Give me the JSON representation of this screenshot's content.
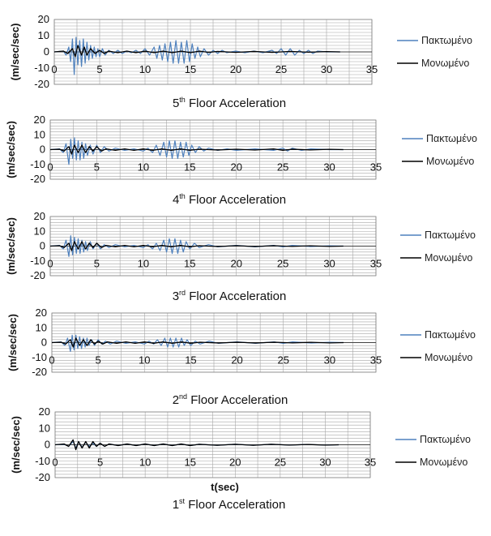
{
  "colors": {
    "fixed": "#4f81bd",
    "isolated": "#000000",
    "grid": "#a6a6a6",
    "axis": "#808080"
  },
  "x_axis_label": "t(sec)",
  "chart_data": [
    {
      "type": "line",
      "title": {
        "pre": "5",
        "sup": "th",
        "post": " Floor Acceleration"
      },
      "ylabel": "(m/sec/sec)",
      "xlim": [
        0,
        35
      ],
      "ylim": [
        -20,
        20
      ],
      "xticks": [
        0,
        5,
        10,
        15,
        20,
        25,
        30,
        35
      ],
      "yticks": [
        -20,
        -10,
        0,
        10,
        20
      ],
      "series": [
        {
          "name": "Πακτωμένο",
          "color": "#4f81bd",
          "x": [
            0,
            1,
            1.3,
            1.6,
            1.8,
            2.0,
            2.2,
            2.4,
            2.6,
            2.8,
            3.0,
            3.2,
            3.4,
            3.6,
            3.8,
            4.0,
            4.2,
            4.4,
            4.6,
            4.8,
            5.0,
            5.3,
            5.6,
            6.0,
            6.5,
            7.0,
            7.5,
            8.0,
            8.5,
            9.0,
            9.5,
            10.0,
            10.5,
            11.0,
            11.3,
            11.6,
            11.9,
            12.2,
            12.5,
            12.8,
            13.1,
            13.4,
            13.7,
            14.0,
            14.3,
            14.6,
            14.9,
            15.2,
            15.5,
            15.8,
            16.1,
            16.5,
            17,
            17.5,
            18,
            18.5,
            19,
            20,
            21,
            22,
            23,
            24,
            24.5,
            25,
            25.5,
            26,
            26.5,
            27,
            27.5,
            28,
            28.5,
            29,
            30,
            31,
            31.5
          ],
          "y": [
            0,
            0.5,
            -2,
            3,
            -6,
            8,
            -14,
            9,
            -8,
            7,
            -9,
            8,
            -7,
            6,
            -5,
            4,
            -4,
            3,
            -3,
            2,
            -3,
            2,
            -2,
            1,
            -1,
            1,
            -1,
            0.5,
            -0.5,
            1,
            -1,
            2,
            -2,
            3,
            -4,
            4,
            -5,
            5,
            -6,
            6,
            -7,
            7,
            -7,
            6,
            -7,
            7,
            -6,
            5,
            -4,
            3,
            -3,
            2,
            -2,
            1,
            -1,
            1,
            -0.5,
            0.5,
            -0.5,
            0.5,
            -0.5,
            1,
            -1,
            2,
            -2,
            2,
            -2,
            1,
            -1,
            1,
            -1,
            0.5,
            0,
            0,
            0
          ]
        },
        {
          "name": "Μονωμένο",
          "color": "#000000",
          "x": [
            0,
            1,
            1.5,
            2.0,
            2.3,
            2.6,
            3.0,
            3.3,
            3.6,
            4.0,
            4.5,
            5.0,
            5.5,
            6,
            7,
            8,
            9,
            10,
            11,
            12,
            13,
            14,
            15,
            16,
            17,
            18,
            20,
            22,
            24,
            26,
            28,
            30,
            31.5
          ],
          "y": [
            0,
            0.5,
            -1,
            2,
            -3,
            4,
            -2,
            3,
            -2,
            2,
            -1,
            1,
            -1,
            0.5,
            -0.5,
            0.5,
            -0.5,
            0.5,
            -0.5,
            0.5,
            -0.5,
            0.5,
            -0.5,
            0.5,
            -0.3,
            0.3,
            -0.3,
            0.3,
            -0.3,
            0.3,
            -0.2,
            0.2,
            0
          ]
        }
      ]
    },
    {
      "type": "line",
      "title": {
        "pre": "4",
        "sup": "th",
        "post": " Floor Acceleration"
      },
      "ylabel": "(m/sec/sec)",
      "xlim": [
        0,
        35
      ],
      "ylim": [
        -20,
        20
      ],
      "xticks": [
        0,
        5,
        10,
        15,
        20,
        25,
        30,
        35
      ],
      "yticks": [
        -20,
        -10,
        0,
        10,
        20
      ],
      "series": [
        {
          "name": "Πακτωμένο",
          "color": "#4f81bd",
          "x": [
            0,
            1,
            1.4,
            1.7,
            2.0,
            2.2,
            2.4,
            2.6,
            2.8,
            3.0,
            3.2,
            3.4,
            3.6,
            3.8,
            4.0,
            4.3,
            4.6,
            5.0,
            5.4,
            5.8,
            6.3,
            7,
            8,
            9,
            10,
            10.5,
            11,
            11.4,
            11.8,
            12.2,
            12.5,
            12.8,
            13.1,
            13.4,
            13.7,
            14.0,
            14.3,
            14.6,
            14.9,
            15.2,
            15.6,
            16,
            16.5,
            17,
            18,
            19,
            20,
            22,
            24,
            25,
            25.5,
            26,
            27,
            28,
            30,
            31.5
          ],
          "y": [
            0,
            0.5,
            -2,
            4,
            -10,
            7,
            -6,
            8,
            -7,
            6,
            -7,
            5,
            -6,
            4,
            -4,
            3,
            -3,
            3,
            -2,
            2,
            -1,
            1,
            -0.5,
            0.5,
            -1,
            1,
            -2,
            3,
            -4,
            5,
            -5,
            6,
            -6,
            6,
            -6,
            5,
            -5,
            5,
            -4,
            3,
            -2,
            2,
            -1,
            1,
            -0.5,
            0.5,
            -0.5,
            0.5,
            -0.5,
            1,
            -1,
            1,
            -0.5,
            0.5,
            0,
            0
          ]
        },
        {
          "name": "Μονωμένο",
          "color": "#000000",
          "x": [
            0,
            1,
            1.5,
            2.0,
            2.3,
            2.6,
            3.0,
            3.4,
            3.8,
            4.2,
            4.6,
            5.0,
            5.5,
            6,
            7,
            8,
            9,
            10,
            11,
            12,
            13,
            14,
            15,
            16,
            18,
            20,
            22,
            24,
            25,
            26,
            28,
            30,
            31.5
          ],
          "y": [
            0,
            0.3,
            -1,
            2,
            -3,
            3,
            -2,
            3,
            -2,
            2,
            -1,
            2,
            -1,
            0.5,
            -0.5,
            0.5,
            -0.5,
            0.5,
            -0.5,
            0.5,
            -0.5,
            0.5,
            -0.5,
            0.3,
            -0.3,
            0.3,
            -0.3,
            0.5,
            -0.5,
            0.3,
            -0.2,
            0.2,
            0
          ]
        }
      ]
    },
    {
      "type": "line",
      "title": {
        "pre": "3",
        "sup": "rd",
        "post": " Floor Acceleration"
      },
      "ylabel": "(m/sec/sec)",
      "xlim": [
        0,
        35
      ],
      "ylim": [
        -20,
        20
      ],
      "xticks": [
        0,
        5,
        10,
        15,
        20,
        25,
        30,
        35
      ],
      "yticks": [
        -20,
        -10,
        0,
        10,
        20
      ],
      "series": [
        {
          "name": "Πακτωμένο",
          "color": "#4f81bd",
          "x": [
            0,
            1,
            1.4,
            1.7,
            2.0,
            2.2,
            2.4,
            2.6,
            2.8,
            3.0,
            3.2,
            3.4,
            3.6,
            3.8,
            4.0,
            4.3,
            4.6,
            5.0,
            5.4,
            5.8,
            6.3,
            7,
            8,
            9,
            10,
            10.5,
            11,
            11.4,
            11.8,
            12.2,
            12.5,
            12.8,
            13.1,
            13.4,
            13.7,
            14.0,
            14.3,
            14.6,
            15,
            15.5,
            16,
            17,
            18,
            20,
            22,
            24,
            25,
            26,
            28,
            30,
            31.5
          ],
          "y": [
            0,
            0.5,
            -2,
            4,
            -7,
            7,
            -6,
            6,
            -5,
            5,
            -5,
            4,
            -4,
            3,
            -3,
            3,
            -2,
            2,
            -2,
            1,
            -1,
            1,
            -0.5,
            0.5,
            -1,
            1,
            -2,
            2,
            -3,
            4,
            -4,
            5,
            -5,
            5,
            -5,
            4,
            -4,
            3,
            -2,
            2,
            -1,
            1,
            -0.5,
            0.5,
            -0.5,
            0.5,
            -0.5,
            0.5,
            -0.3,
            0.2,
            0
          ]
        },
        {
          "name": "Μονωμένο",
          "color": "#000000",
          "x": [
            0,
            1,
            1.5,
            2.0,
            2.3,
            2.6,
            3.0,
            3.4,
            3.8,
            4.2,
            4.6,
            5.0,
            5.5,
            6,
            7,
            8,
            9,
            10,
            11,
            12,
            13,
            14,
            15,
            16,
            18,
            20,
            22,
            24,
            26,
            28,
            30,
            31.5
          ],
          "y": [
            0,
            0.3,
            -1,
            2,
            -3,
            3,
            -2,
            3,
            -2,
            2,
            -1,
            2,
            -1,
            0.5,
            -0.5,
            0.5,
            -0.5,
            0.5,
            -0.5,
            0.5,
            -0.5,
            0.5,
            -0.5,
            0.3,
            -0.3,
            0.3,
            -0.3,
            0.3,
            -0.2,
            0.2,
            -0.2,
            0
          ]
        }
      ]
    },
    {
      "type": "line",
      "title": {
        "pre": "2",
        "sup": "nd",
        "post": " Floor Acceleration"
      },
      "ylabel": "(m/sec/sec)",
      "xlim": [
        0,
        35
      ],
      "ylim": [
        -20,
        20
      ],
      "xticks": [
        0,
        5,
        10,
        15,
        20,
        25,
        30,
        35
      ],
      "yticks": [
        -20,
        -10,
        0,
        10,
        20
      ],
      "series": [
        {
          "name": "Πακτωμένο",
          "color": "#4f81bd",
          "x": [
            0,
            1,
            1.4,
            1.7,
            2.0,
            2.2,
            2.4,
            2.6,
            2.8,
            3.0,
            3.2,
            3.4,
            3.6,
            3.8,
            4.0,
            4.3,
            4.6,
            5.0,
            5.4,
            5.8,
            6.3,
            7,
            8,
            9,
            10,
            10.5,
            11,
            11.4,
            11.8,
            12.2,
            12.5,
            12.8,
            13.1,
            13.4,
            13.7,
            14.0,
            14.3,
            14.6,
            15,
            15.5,
            16,
            17,
            18,
            20,
            22,
            24,
            25,
            26,
            28,
            30,
            31.5
          ],
          "y": [
            0,
            0.5,
            -2,
            3,
            -6,
            5,
            -5,
            5,
            -4,
            4,
            -4,
            3,
            -3,
            3,
            -2,
            2,
            -2,
            2,
            -1,
            1,
            -1,
            1,
            -0.5,
            0.5,
            -1,
            1,
            -1,
            2,
            -2,
            3,
            -3,
            3,
            -3,
            3,
            -3,
            3,
            -2,
            2,
            -2,
            1,
            -1,
            1,
            -0.5,
            0.5,
            -0.5,
            0.5,
            -0.5,
            0.5,
            -0.3,
            0.2,
            0
          ]
        },
        {
          "name": "Μονωμένο",
          "color": "#000000",
          "x": [
            0,
            1,
            1.5,
            2.0,
            2.3,
            2.6,
            3.0,
            3.4,
            3.8,
            4.2,
            4.6,
            5.0,
            5.5,
            6,
            7,
            8,
            9,
            10,
            11,
            12,
            13,
            14,
            15,
            16,
            18,
            20,
            22,
            24,
            26,
            28,
            30,
            31.5
          ],
          "y": [
            0,
            0.3,
            -1,
            2,
            -3,
            3,
            -2,
            2,
            -2,
            2,
            -1,
            1,
            -1,
            0.5,
            -0.5,
            0.5,
            -0.5,
            0.5,
            -0.5,
            0.5,
            -0.5,
            0.5,
            -0.5,
            0.3,
            -0.3,
            0.3,
            -0.3,
            0.3,
            -0.2,
            0.2,
            -0.2,
            0
          ]
        }
      ]
    },
    {
      "type": "line",
      "title": {
        "pre": "1",
        "sup": "st",
        "post": " Floor Acceleration"
      },
      "ylabel": "(m/sec/sec)",
      "xlabel": "t(sec)",
      "xlim": [
        0,
        35
      ],
      "ylim": [
        -20,
        20
      ],
      "xticks": [
        0,
        5,
        10,
        15,
        20,
        25,
        30,
        35
      ],
      "yticks": [
        -20,
        -10,
        0,
        10,
        20
      ],
      "series": [
        {
          "name": "Πακτωμένο",
          "color": "#4f81bd",
          "x": [
            0,
            1,
            1.5,
            2.0,
            2.3,
            2.6,
            3.0,
            3.4,
            3.8,
            4.2,
            4.6,
            5.0,
            5.5,
            6,
            7,
            8,
            9,
            10,
            11,
            12,
            13,
            14,
            15,
            16,
            18,
            20,
            22,
            24,
            26,
            28,
            30,
            31.5
          ],
          "y": [
            0,
            0.3,
            -1,
            2,
            -2,
            2,
            -1.5,
            1.5,
            -1,
            1,
            -1,
            1,
            -1,
            0.5,
            -0.5,
            0.5,
            -0.5,
            0.5,
            -0.5,
            0.5,
            -0.5,
            0.5,
            -0.5,
            0.3,
            -0.3,
            0.3,
            -0.3,
            0.3,
            -0.2,
            0.2,
            -0.2,
            0
          ]
        },
        {
          "name": "Μονωμένο",
          "color": "#000000",
          "x": [
            0,
            1,
            1.5,
            2.0,
            2.3,
            2.6,
            3.0,
            3.4,
            3.8,
            4.2,
            4.6,
            5.0,
            5.5,
            6,
            7,
            8,
            9,
            10,
            11,
            12,
            13,
            14,
            15,
            16,
            18,
            20,
            22,
            24,
            26,
            28,
            30,
            31.5
          ],
          "y": [
            0,
            0.5,
            -1,
            3,
            -3,
            2,
            -2,
            2,
            -2,
            2,
            -1,
            1,
            -1,
            0.5,
            -0.5,
            0.5,
            -0.5,
            0.5,
            -0.5,
            0.5,
            -0.5,
            0.5,
            -0.5,
            0.3,
            -0.3,
            0.3,
            -0.3,
            0.3,
            -0.2,
            0.2,
            -0.2,
            0
          ]
        }
      ]
    }
  ]
}
